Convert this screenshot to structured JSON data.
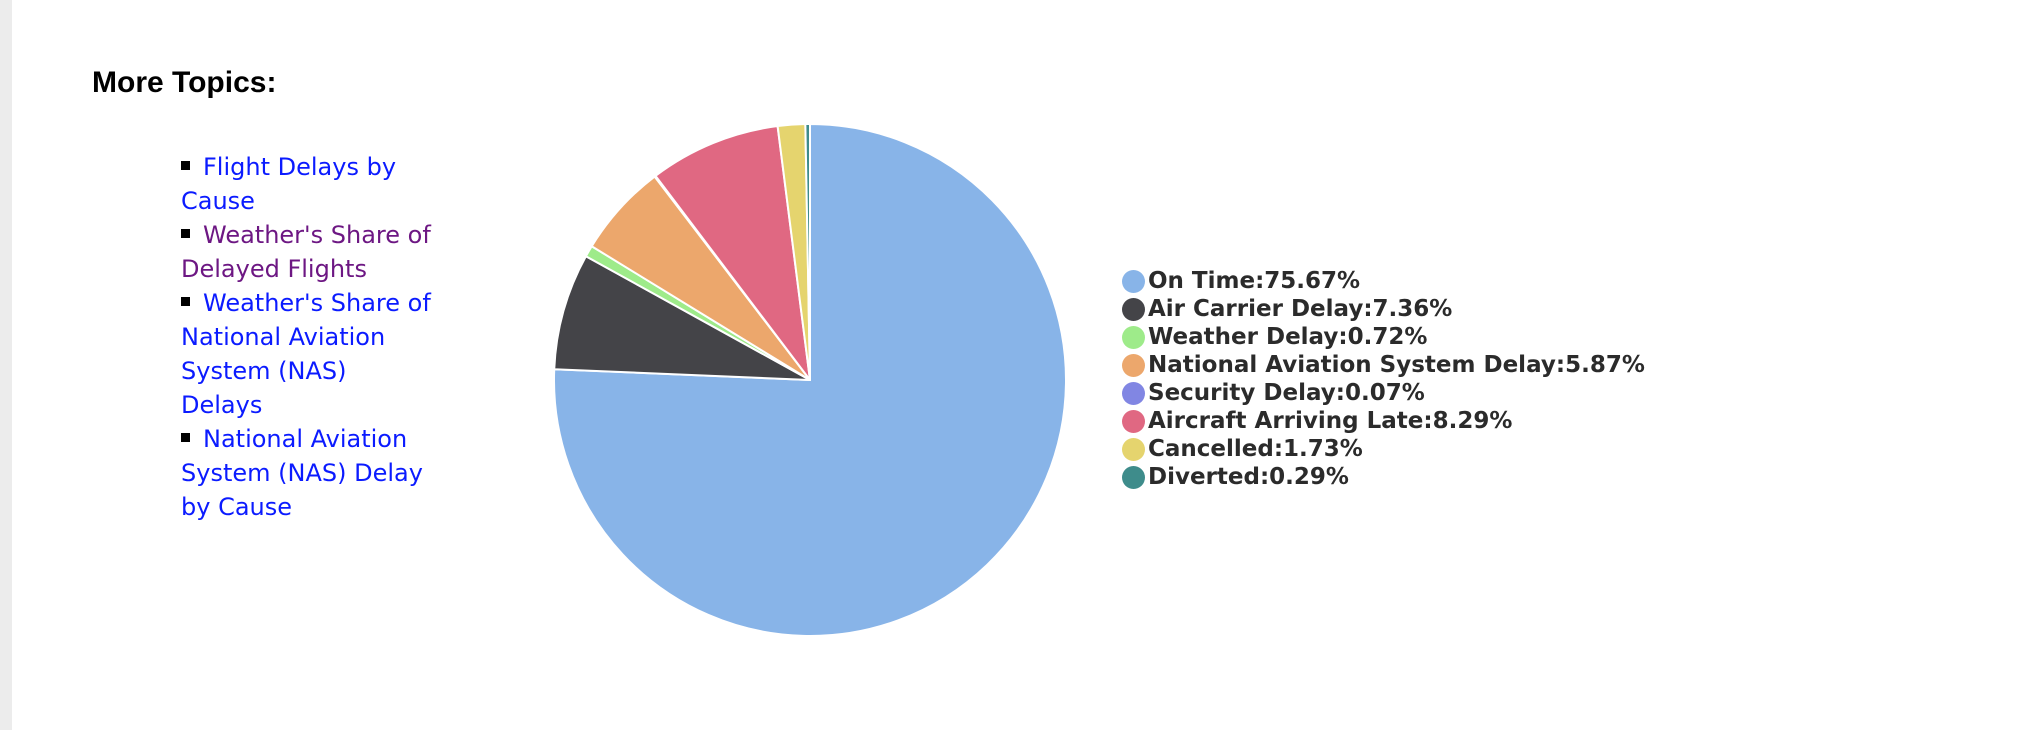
{
  "sidebar": {
    "title": "More Topics:",
    "links": [
      {
        "label": "Flight Delays by Cause",
        "visited": false
      },
      {
        "label": "Weather's Share of Delayed Flights",
        "visited": true
      },
      {
        "label": "Weather's Share of National Aviation System (NAS) Delays",
        "visited": false
      },
      {
        "label": "National Aviation System (NAS) Delay by Cause",
        "visited": false
      }
    ]
  },
  "chart_data": {
    "type": "pie",
    "title": "",
    "unit": "%",
    "slices": [
      {
        "label": "On Time",
        "value": 75.67,
        "color": "#88b4e8"
      },
      {
        "label": "Air Carrier Delay",
        "value": 7.36,
        "color": "#444448"
      },
      {
        "label": "Weather Delay",
        "value": 0.72,
        "color": "#9eeb8a"
      },
      {
        "label": "National Aviation System Delay",
        "value": 5.87,
        "color": "#eca76c"
      },
      {
        "label": "Security Delay",
        "value": 0.07,
        "color": "#8186e3"
      },
      {
        "label": "Aircraft Arriving Late",
        "value": 8.29,
        "color": "#e06882"
      },
      {
        "label": "Cancelled",
        "value": 1.73,
        "color": "#e5d46e"
      },
      {
        "label": "Diverted",
        "value": 0.29,
        "color": "#3e8c8b"
      }
    ],
    "legend_position": "right"
  }
}
